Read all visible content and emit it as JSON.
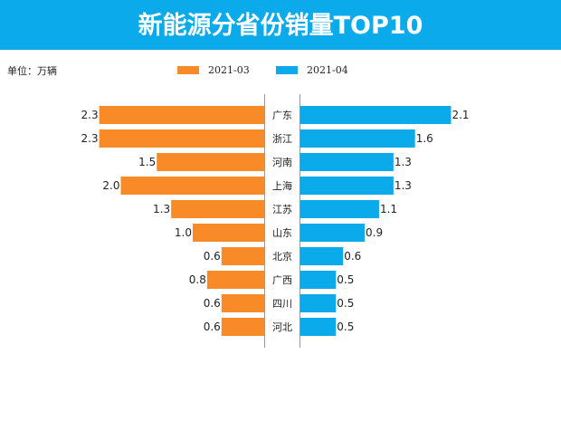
{
  "chart_data": {
    "type": "bar",
    "orientation": "horizontal-butterfly",
    "title": "新能源分省份销量TOP10",
    "unit_label": "单位：万辆",
    "categories": [
      "广东",
      "浙江",
      "河南",
      "上海",
      "江苏",
      "山东",
      "北京",
      "广西",
      "四川",
      "河北"
    ],
    "series": [
      {
        "name": "2021-03",
        "color": "#f98a28",
        "values": [
          2.3,
          2.3,
          1.5,
          2.0,
          1.3,
          1.0,
          0.6,
          0.8,
          0.6,
          0.6
        ]
      },
      {
        "name": "2021-04",
        "color": "#0aaaeb",
        "values": [
          2.1,
          1.6,
          1.3,
          1.3,
          1.1,
          0.9,
          0.6,
          0.5,
          0.5,
          0.5
        ]
      }
    ],
    "legend_position": "top",
    "grid": false,
    "data_labels": true
  },
  "header": {
    "color": "#0aaaeb"
  }
}
